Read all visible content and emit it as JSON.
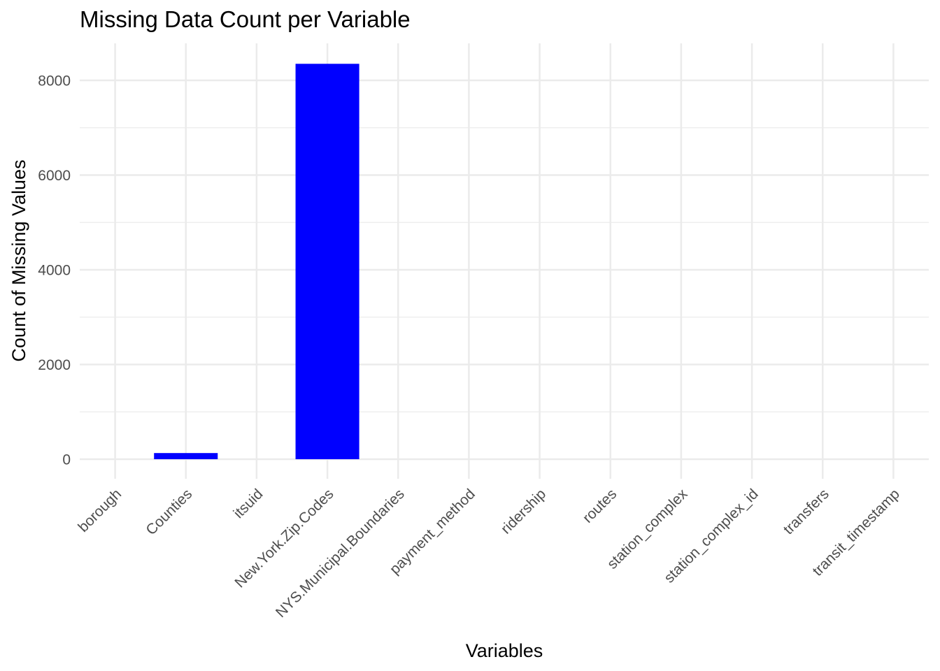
{
  "chart_data": {
    "type": "bar",
    "title": "Missing Data Count per Variable",
    "xlabel": "Variables",
    "ylabel": "Count of Missing Values",
    "categories": [
      "borough",
      "Counties",
      "itsuid",
      "New.York.Zip.Codes",
      "NYS.Municipal.Boundaries",
      "payment_method",
      "ridership",
      "routes",
      "station_complex",
      "station_complex_id",
      "transfers",
      "transit_timestamp"
    ],
    "values": [
      0,
      130,
      0,
      8350,
      0,
      0,
      0,
      0,
      0,
      0,
      0,
      0
    ],
    "ylim": [
      0,
      8700
    ],
    "yticks": [
      0,
      2000,
      4000,
      6000,
      8000
    ],
    "ytick_labels": [
      "0",
      "2000",
      "4000",
      "6000",
      "8000"
    ],
    "bar_color": "#0000ff",
    "grid": true
  }
}
